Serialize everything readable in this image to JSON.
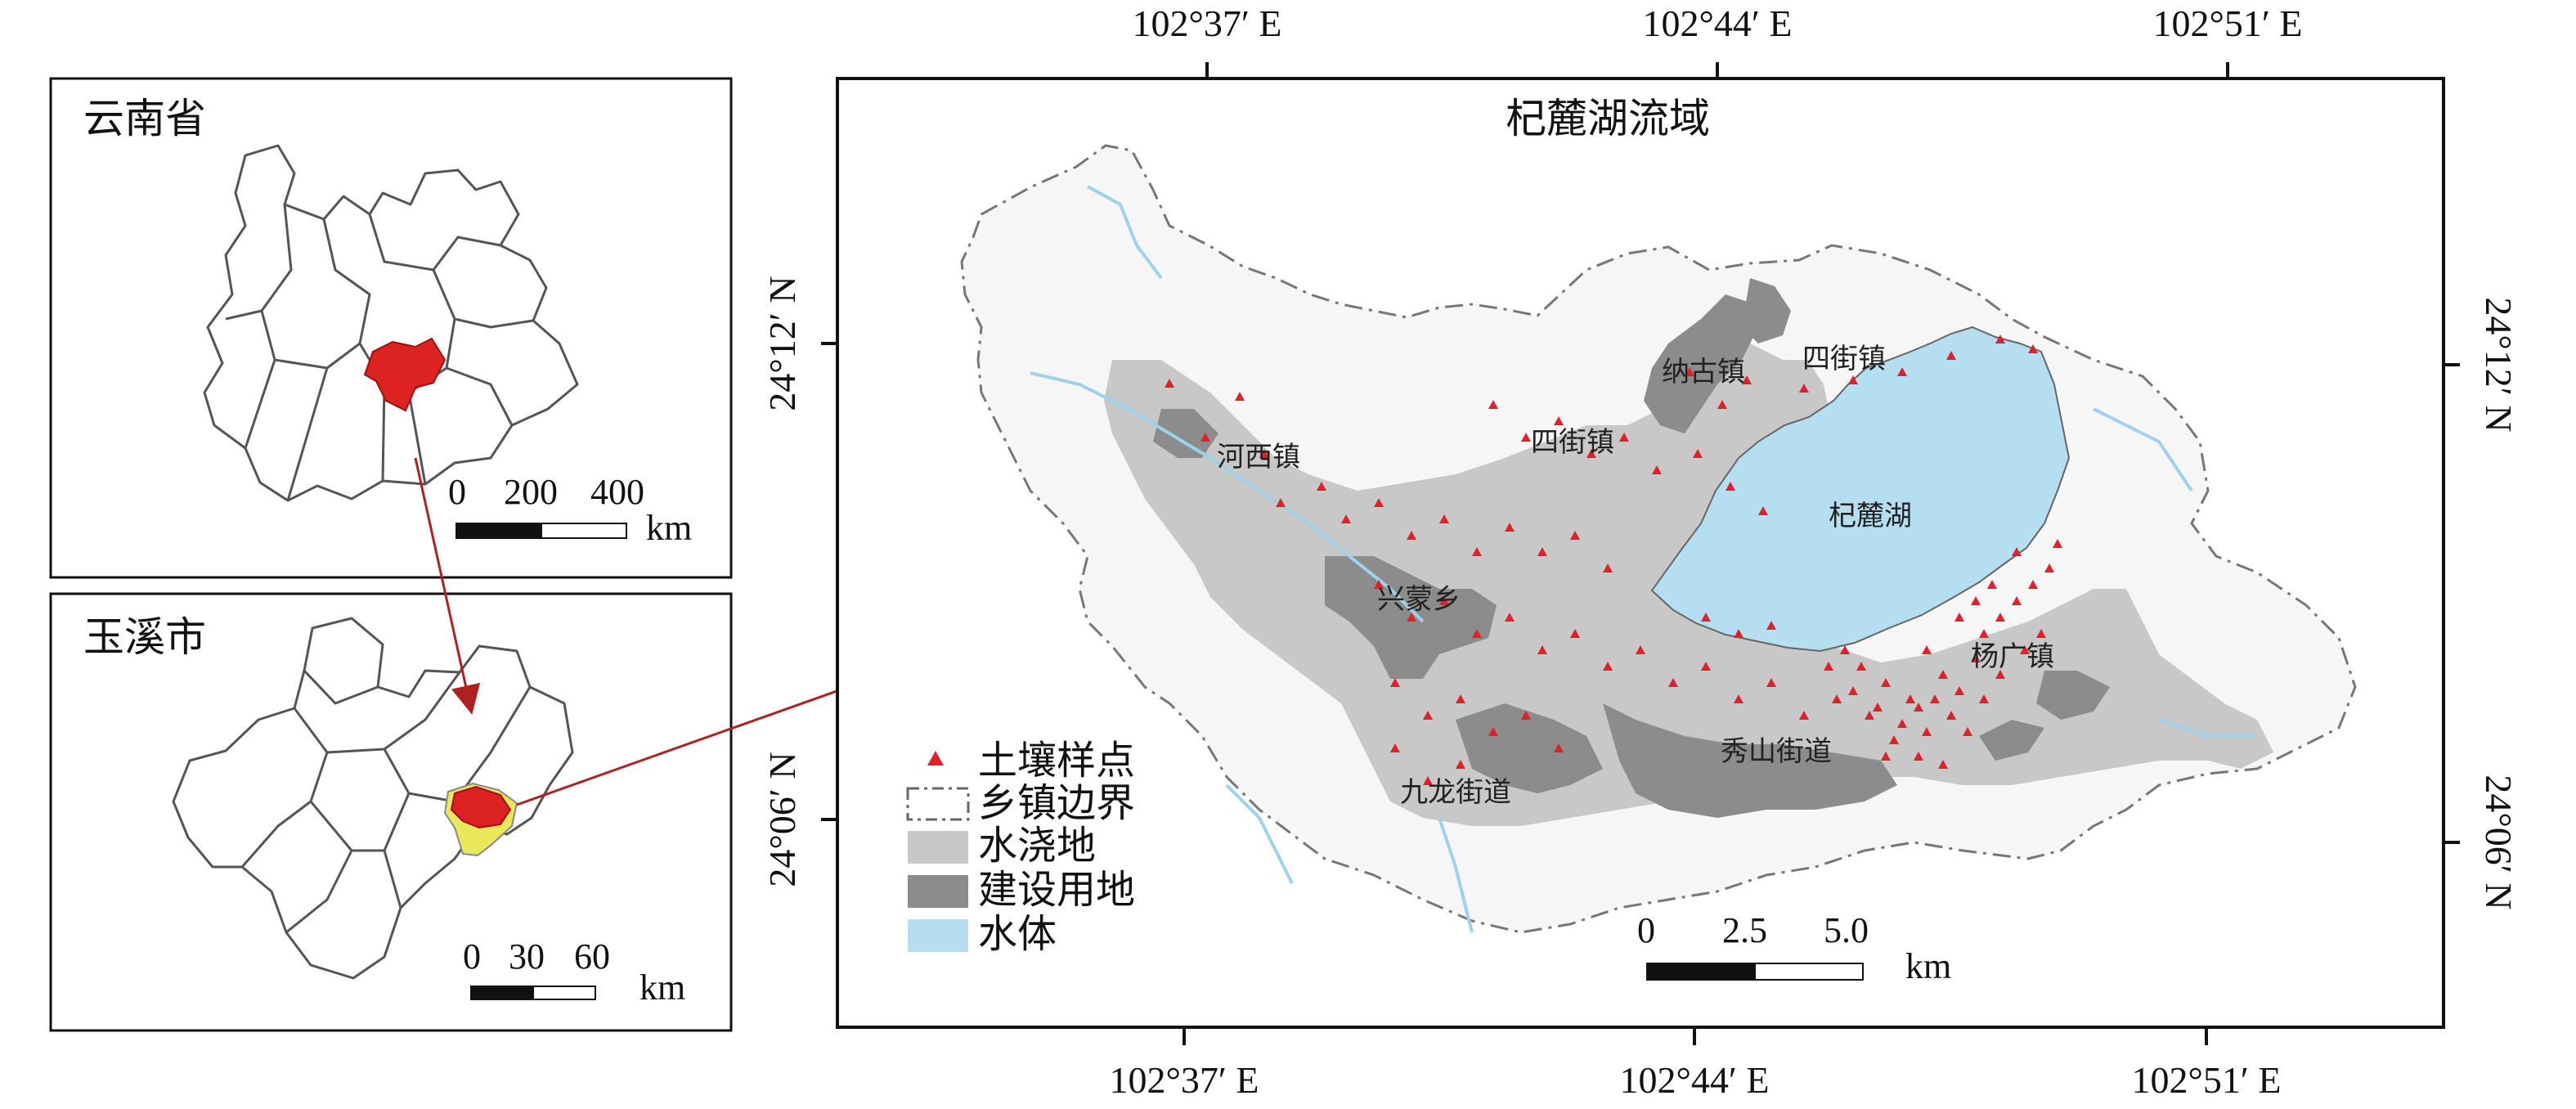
{
  "insets": {
    "province": {
      "title": "云南省",
      "scale_ticks": [
        "0",
        "200",
        "400"
      ],
      "scale_unit": "km"
    },
    "city": {
      "title": "玉溪市",
      "scale_ticks": [
        "0",
        "30",
        "60"
      ],
      "scale_unit": "km"
    }
  },
  "main_map": {
    "title": "杞麓湖流域",
    "lon_labels": [
      "102°37′ E",
      "102°44′ E",
      "102°51′ E"
    ],
    "lat_labels": [
      "24°12′ N",
      "24°06′ N"
    ],
    "scale_ticks": [
      "0",
      "2.5",
      "5.0"
    ],
    "scale_unit": "km",
    "places": {
      "nagu": "纳古镇",
      "sijie_ne": "四街镇",
      "sijie_c": "四街镇",
      "hexi": "河西镇",
      "lake": "杞麓湖",
      "xingmeng": "兴蒙乡",
      "yangguang": "杨广镇",
      "xiushan": "秀山街道",
      "jiulong": "九龙街道"
    },
    "legend": [
      {
        "label": "土壤样点",
        "symbol": "red-triangle",
        "color": "#e0202a"
      },
      {
        "label": "乡镇边界",
        "symbol": "dash-dot-box",
        "color": "#666666"
      },
      {
        "label": "水浇地",
        "symbol": "fill",
        "color": "#c8c8c8"
      },
      {
        "label": "建设用地",
        "symbol": "fill",
        "color": "#8c8c8c"
      },
      {
        "label": "水体",
        "symbol": "fill",
        "color": "#b5def0"
      }
    ]
  },
  "colors": {
    "highlight_red": "#dd2222",
    "highlight_yellow": "#e8e85a",
    "irrigated": "#c8c8c8",
    "built": "#8c8c8c",
    "water": "#b5def0",
    "sample": "#e0202a"
  }
}
